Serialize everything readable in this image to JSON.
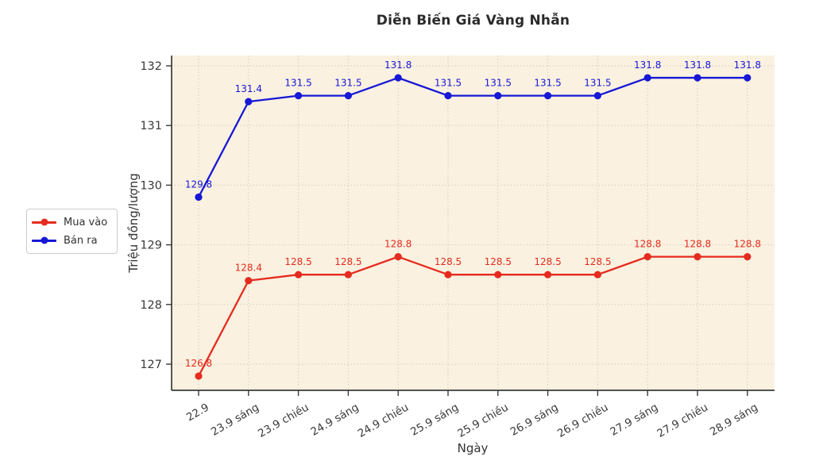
{
  "chart_data": {
    "type": "line",
    "title": "Diễn Biến Giá Vàng Nhẫn",
    "xlabel": "Ngày",
    "ylabel": "Triệu đồng/lượng",
    "categories": [
      "22.9",
      "23.9 sáng",
      "23.9 chiều",
      "24.9 sáng",
      "24.9 chiều",
      "25.9 sáng",
      "25.9 chiều",
      "26.9 sáng",
      "26.9 chiều",
      "27.9 sáng",
      "27.9 chiều",
      "28.9 sáng"
    ],
    "series": [
      {
        "name": "Mua vào",
        "color": "#e52b1e",
        "values": [
          126.8,
          128.4,
          128.5,
          128.5,
          128.8,
          128.5,
          128.5,
          128.5,
          128.5,
          128.8,
          128.8,
          128.8
        ]
      },
      {
        "name": "Bán ra",
        "color": "#1717d6",
        "values": [
          129.8,
          131.4,
          131.5,
          131.5,
          131.8,
          131.5,
          131.5,
          131.5,
          131.5,
          131.8,
          131.8,
          131.8
        ]
      }
    ],
    "yticks": [
      127,
      128,
      129,
      130,
      131,
      132
    ],
    "ylim": [
      126.6,
      132.2
    ],
    "grid": true,
    "grid_style": "dotted",
    "data_labels": true,
    "legend_position": "outside-left",
    "colors": {
      "plot_bg": "#faf1e0",
      "grid": "#d9cdbd",
      "axis": "#3a3a3a",
      "tick_text": "#3a3a3a"
    }
  }
}
